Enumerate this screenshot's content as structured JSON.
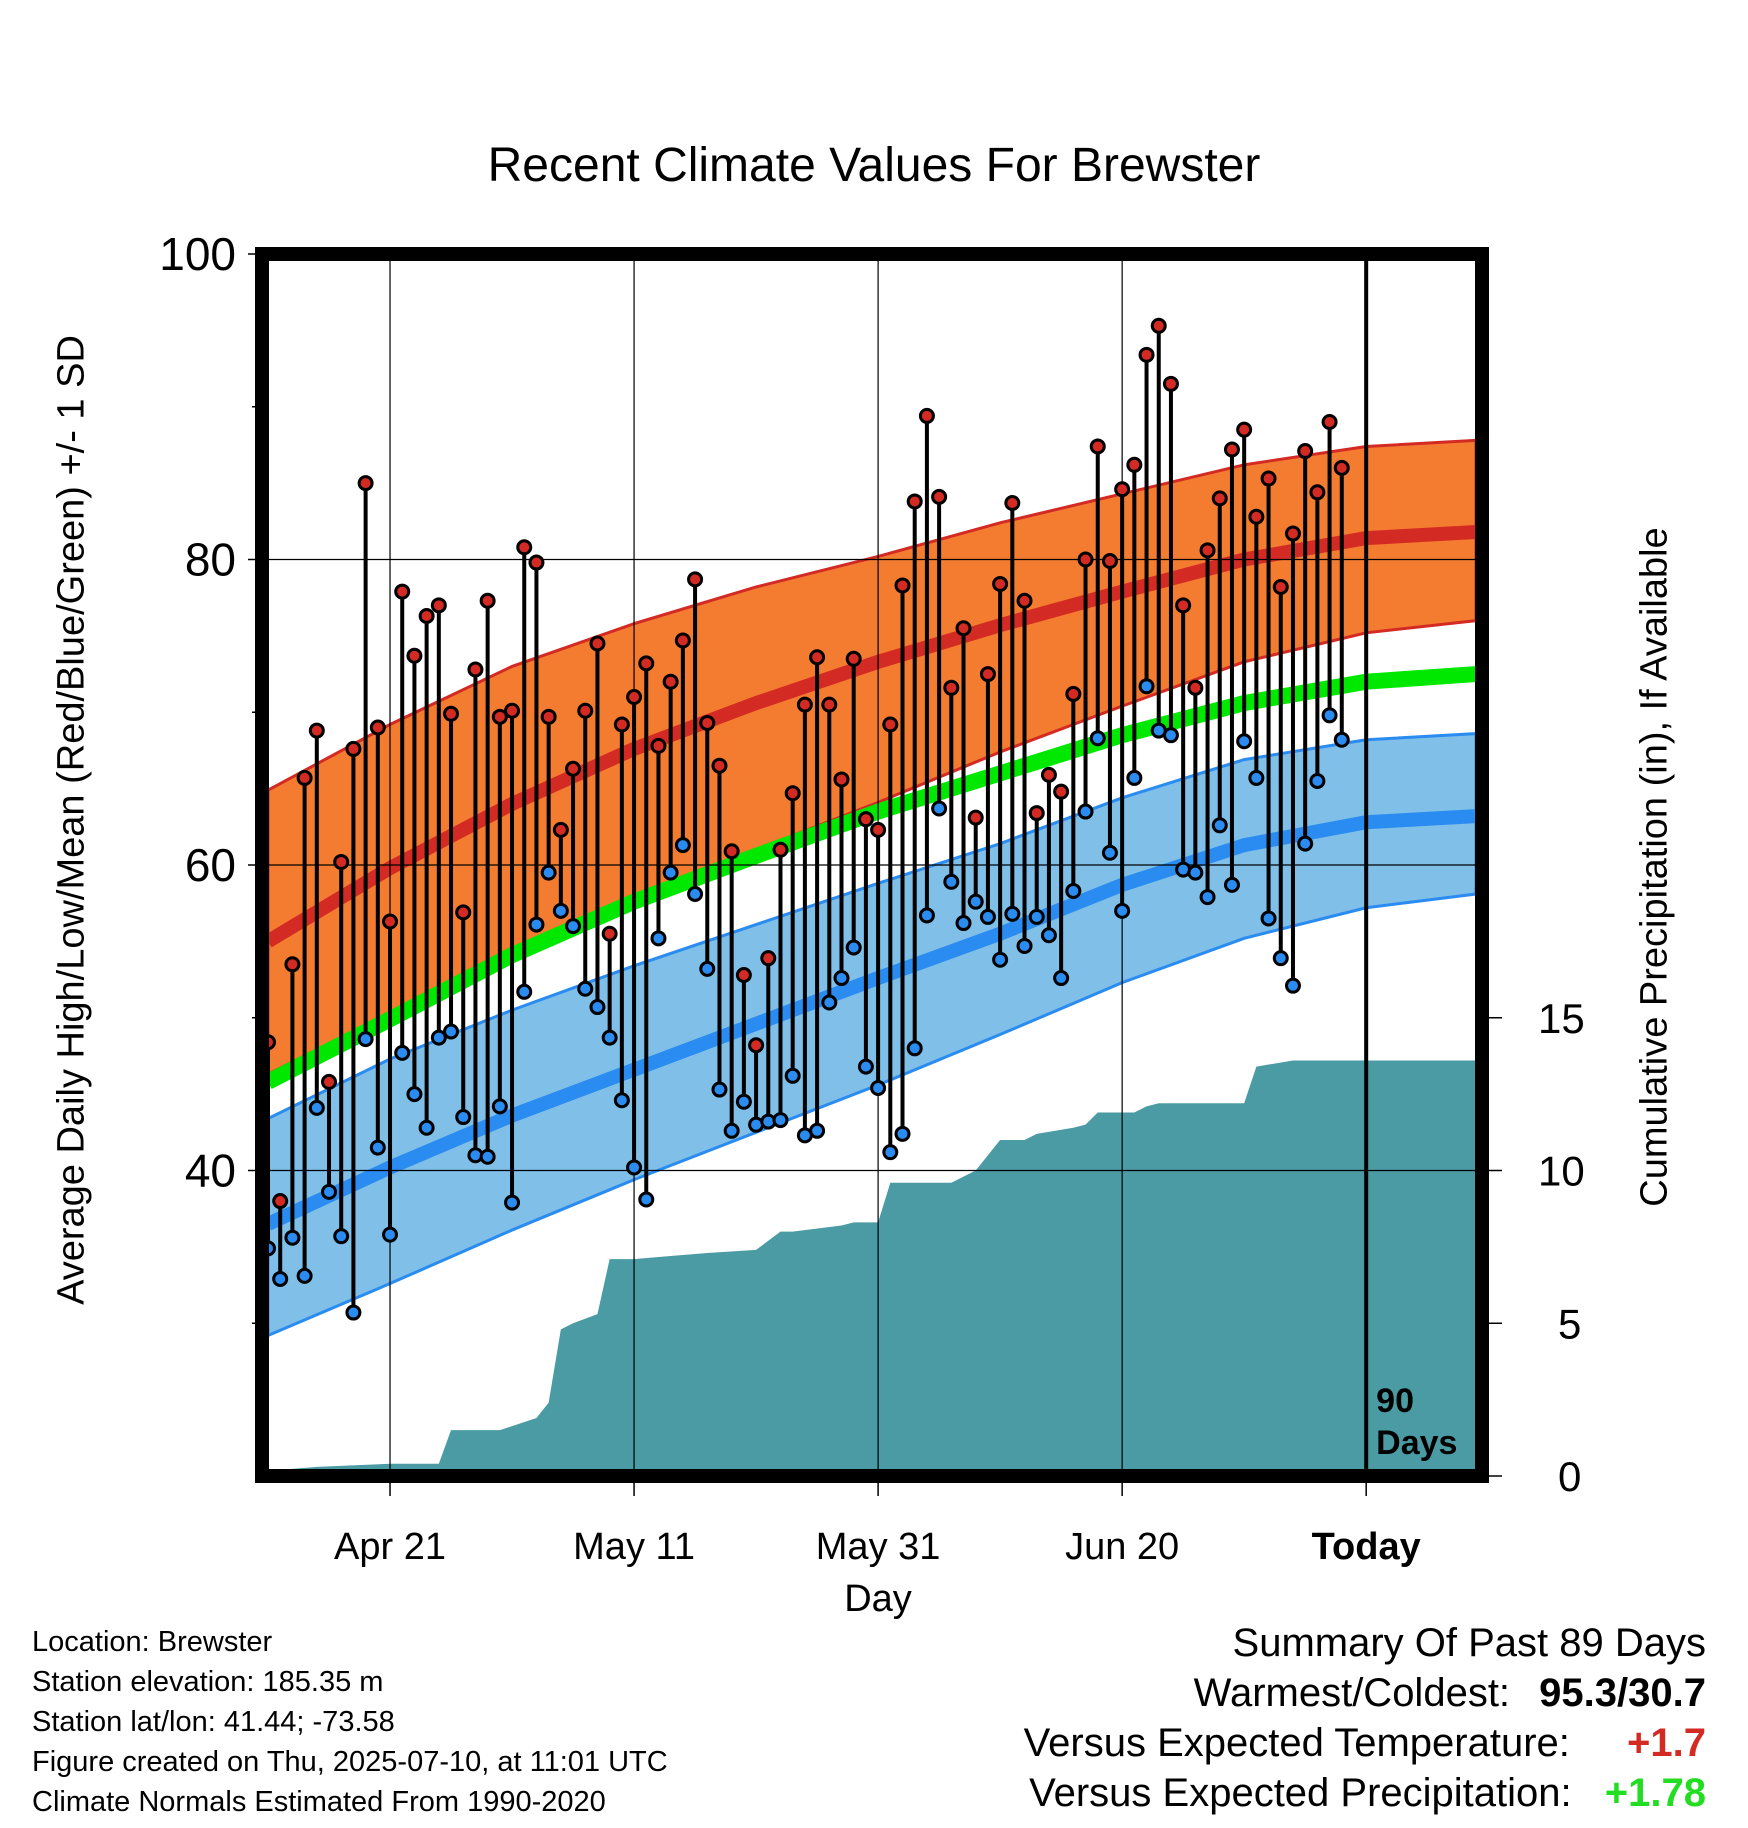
{
  "chart_data": {
    "type": "line",
    "title": "Recent Climate Values For Brewster",
    "ylabel": "Average Daily High/Low/Mean (Red/Blue/Green) +/- 1 SD",
    "y2label": "Cumulative Precipitation (in), If Available",
    "xlabel": "Day",
    "ylim": [
      20,
      100
    ],
    "y2lim": [
      0,
      40
    ],
    "yticks": [
      40,
      60,
      80,
      100
    ],
    "y2ticks": [
      0,
      5,
      10,
      15
    ],
    "xticks": [
      {
        "label": "Apr 21",
        "day": 10
      },
      {
        "label": "May 11",
        "day": 30
      },
      {
        "label": "May 31",
        "day": 50
      },
      {
        "label": "Jun 20",
        "day": 70
      },
      {
        "label": "Today",
        "day": 90
      }
    ],
    "marker_label": "90\nDays",
    "colors": {
      "high_band": "#f47c30",
      "high_line": "#d42a24",
      "low_band": "#7fbfe8",
      "low_line": "#2a8cf0",
      "mean_line": "#00e800",
      "precip": "#4a9ba3",
      "high_dot": "#d42a24",
      "low_dot": "#2a8cf0"
    },
    "normals": {
      "days": [
        0,
        10,
        20,
        30,
        40,
        50,
        60,
        70,
        80,
        90,
        99
      ],
      "high_mean": [
        55.0,
        59.8,
        64.0,
        67.6,
        70.6,
        73.3,
        75.7,
        77.9,
        80.0,
        81.4,
        81.8
      ],
      "high_upper": [
        64.9,
        69.2,
        73.0,
        75.8,
        78.2,
        80.2,
        82.4,
        84.3,
        86.2,
        87.4,
        87.8
      ],
      "high_lower": [
        46.3,
        50.3,
        54.4,
        57.9,
        61.0,
        64.1,
        67.4,
        70.4,
        73.3,
        75.2,
        76.0
      ],
      "mean": [
        45.8,
        49.9,
        54.1,
        57.6,
        60.6,
        63.5,
        66.0,
        68.5,
        70.6,
        72.0,
        72.5
      ],
      "low_mean": [
        36.5,
        40.2,
        43.6,
        46.6,
        49.6,
        52.6,
        55.5,
        58.7,
        61.3,
        62.8,
        63.2
      ],
      "low_upper": [
        43.4,
        47.3,
        50.5,
        53.4,
        56.1,
        58.8,
        61.4,
        64.4,
        66.9,
        68.2,
        68.6
      ],
      "low_lower": [
        29.2,
        32.6,
        36.1,
        39.4,
        42.5,
        45.6,
        48.9,
        52.3,
        55.2,
        57.2,
        58.1
      ]
    },
    "series": [
      {
        "name": "High",
        "values": [
          48.4,
          38.0,
          53.5,
          65.7,
          68.8,
          45.8,
          60.2,
          67.6,
          85.0,
          69.0,
          56.3,
          77.9,
          73.7,
          76.3,
          77.0,
          69.9,
          56.9,
          72.8,
          77.3,
          69.7,
          70.1,
          80.8,
          79.8,
          69.7,
          62.3,
          66.3,
          70.1,
          74.5,
          55.5,
          69.2,
          71.0,
          73.2,
          67.8,
          72.0,
          74.7,
          78.7,
          69.3,
          66.5,
          60.9,
          52.8,
          48.2,
          53.9,
          61.0,
          64.7,
          70.5,
          73.6,
          70.5,
          65.6,
          73.5,
          63.0,
          62.3,
          69.2,
          78.3,
          83.8,
          89.4,
          84.1,
          71.6,
          75.5,
          63.1,
          72.5,
          78.4,
          83.7,
          77.3,
          63.4,
          65.9,
          64.8,
          71.2,
          80.0,
          87.4,
          79.9,
          84.6,
          86.2,
          93.4,
          95.3,
          91.5,
          77.0,
          71.6,
          80.6,
          84.0,
          87.2,
          88.5,
          82.8,
          85.3,
          78.2,
          81.7,
          87.1,
          84.4,
          89.0,
          86.0
        ]
      },
      {
        "name": "Low",
        "values": [
          34.9,
          32.9,
          35.6,
          33.1,
          44.1,
          38.6,
          35.7,
          30.7,
          48.6,
          41.5,
          35.8,
          47.7,
          45.0,
          42.8,
          48.7,
          49.1,
          43.5,
          41.0,
          40.9,
          44.2,
          37.9,
          51.7,
          56.1,
          59.5,
          57.0,
          56.0,
          51.9,
          50.7,
          48.7,
          44.6,
          40.2,
          38.1,
          55.2,
          59.5,
          61.3,
          58.1,
          53.2,
          45.3,
          42.6,
          44.5,
          43.0,
          43.2,
          43.3,
          46.2,
          42.3,
          42.6,
          51.0,
          52.6,
          54.6,
          46.8,
          45.4,
          41.2,
          42.4,
          48.0,
          56.7,
          63.7,
          58.9,
          56.2,
          57.6,
          56.6,
          53.8,
          56.8,
          54.7,
          56.6,
          55.4,
          52.6,
          58.3,
          63.5,
          68.3,
          60.8,
          57.0,
          65.7,
          71.7,
          68.8,
          68.5,
          59.7,
          59.5,
          57.9,
          62.6,
          58.7,
          68.1,
          65.7,
          56.5,
          53.9,
          52.1,
          61.4,
          65.5,
          69.8,
          68.2
        ]
      }
    ],
    "precipitation": {
      "days": [
        0,
        1,
        4,
        10,
        14,
        15,
        19,
        22,
        23,
        24,
        25,
        27,
        28,
        30,
        33,
        36,
        40,
        41,
        42,
        43,
        47,
        48,
        50,
        51,
        56,
        57,
        58,
        60,
        62,
        63,
        66,
        67,
        68,
        71,
        72,
        73,
        76,
        80,
        81,
        84,
        87,
        89,
        99
      ],
      "values": [
        0.1,
        0.2,
        0.3,
        0.4,
        0.4,
        1.5,
        1.5,
        1.9,
        2.4,
        4.8,
        5.0,
        5.3,
        7.1,
        7.1,
        7.2,
        7.3,
        7.4,
        7.7,
        8.0,
        8.0,
        8.2,
        8.3,
        8.3,
        9.6,
        9.6,
        9.8,
        10.0,
        11.0,
        11.0,
        11.2,
        11.4,
        11.5,
        11.9,
        11.9,
        12.1,
        12.2,
        12.2,
        12.2,
        13.4,
        13.6,
        13.6,
        13.6,
        13.6
      ]
    }
  },
  "info": {
    "location": "Location: Brewster",
    "elevation": "Station elevation: 185.35 m",
    "latlon": "Station lat/lon: 41.44; -73.58",
    "created": "Figure created on Thu, 2025-07-10, at 11:01 UTC",
    "normals": "Climate Normals Estimated From 1990-2020"
  },
  "summary": {
    "heading": "Summary Of Past 89 Days",
    "warm_cold_label": "Warmest/Coldest:",
    "warm_cold_value": "95.3/30.7",
    "temp_label": "Versus Expected Temperature:",
    "temp_value": "+1.7",
    "temp_color": "#d42a24",
    "precip_label": "Versus Expected Precipitation:",
    "precip_value": "+1.78",
    "precip_color": "#22dd22"
  }
}
